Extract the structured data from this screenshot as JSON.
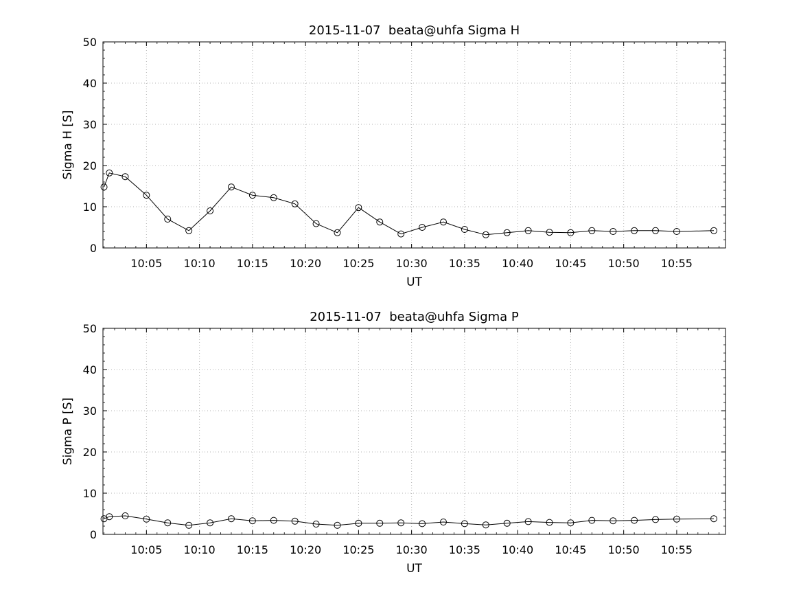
{
  "figure": {
    "background_color": "#ffffff",
    "axis_color": "#000000",
    "grid_color": "#b3b3b3",
    "marker_style": "hollow-circle",
    "line_color": "#000000"
  },
  "chart_data": [
    {
      "type": "line",
      "title": "2015-11-07  beata@uhfa Sigma H",
      "xlabel": "UT",
      "ylabel": "Sigma H [S]",
      "ylim": [
        0,
        50
      ],
      "y_ticks": [
        0,
        10,
        20,
        30,
        40,
        50
      ],
      "xlim_minutes": [
        0.9,
        59.6
      ],
      "x_ticks": [
        {
          "m": 5,
          "label": "10:05"
        },
        {
          "m": 10,
          "label": "10:10"
        },
        {
          "m": 15,
          "label": "10:15"
        },
        {
          "m": 20,
          "label": "10:20"
        },
        {
          "m": 25,
          "label": "10:25"
        },
        {
          "m": 30,
          "label": "10:30"
        },
        {
          "m": 35,
          "label": "10:35"
        },
        {
          "m": 40,
          "label": "10:40"
        },
        {
          "m": 45,
          "label": "10:45"
        },
        {
          "m": 50,
          "label": "10:50"
        },
        {
          "m": 55,
          "label": "10:55"
        }
      ],
      "grid": true,
      "legend": "none",
      "times": [
        "10:01",
        "10:01:30",
        "10:03",
        "10:05",
        "10:07",
        "10:09",
        "10:11",
        "10:13",
        "10:15",
        "10:17",
        "10:19",
        "10:21",
        "10:23",
        "10:25",
        "10:27",
        "10:29",
        "10:31",
        "10:33",
        "10:35",
        "10:37",
        "10:39",
        "10:41",
        "10:43",
        "10:45",
        "10:47",
        "10:49",
        "10:51",
        "10:53",
        "10:55",
        "10:58:30"
      ],
      "x_minutes": [
        1,
        1.5,
        3,
        5,
        7,
        9,
        11,
        13,
        15,
        17,
        19,
        21,
        23,
        25,
        27,
        29,
        31,
        33,
        35,
        37,
        39,
        41,
        43,
        45,
        47,
        49,
        51,
        53,
        55,
        58.5
      ],
      "values": [
        14.8,
        18.2,
        17.3,
        12.8,
        7.0,
        4.2,
        9.0,
        14.8,
        12.8,
        12.2,
        10.7,
        5.9,
        3.7,
        9.8,
        6.3,
        3.4,
        5.0,
        6.3,
        4.5,
        3.2,
        3.7,
        4.2,
        3.8,
        3.7,
        4.2,
        4.0,
        4.2,
        4.2,
        4.0,
        4.2
      ]
    },
    {
      "type": "line",
      "title": "2015-11-07  beata@uhfa Sigma P",
      "xlabel": "UT",
      "ylabel": "Sigma P [S]",
      "ylim": [
        0,
        50
      ],
      "y_ticks": [
        0,
        10,
        20,
        30,
        40,
        50
      ],
      "xlim_minutes": [
        0.9,
        59.6
      ],
      "x_ticks": [
        {
          "m": 5,
          "label": "10:05"
        },
        {
          "m": 10,
          "label": "10:10"
        },
        {
          "m": 15,
          "label": "10:15"
        },
        {
          "m": 20,
          "label": "10:20"
        },
        {
          "m": 25,
          "label": "10:25"
        },
        {
          "m": 30,
          "label": "10:30"
        },
        {
          "m": 35,
          "label": "10:35"
        },
        {
          "m": 40,
          "label": "10:40"
        },
        {
          "m": 45,
          "label": "10:45"
        },
        {
          "m": 50,
          "label": "10:50"
        },
        {
          "m": 55,
          "label": "10:55"
        }
      ],
      "grid": true,
      "legend": "none",
      "times": [
        "10:01",
        "10:01:30",
        "10:03",
        "10:05",
        "10:07",
        "10:09",
        "10:11",
        "10:13",
        "10:15",
        "10:17",
        "10:19",
        "10:21",
        "10:23",
        "10:25",
        "10:27",
        "10:29",
        "10:31",
        "10:33",
        "10:35",
        "10:37",
        "10:39",
        "10:41",
        "10:43",
        "10:45",
        "10:47",
        "10:49",
        "10:51",
        "10:53",
        "10:55",
        "10:58:30"
      ],
      "x_minutes": [
        1,
        1.5,
        3,
        5,
        7,
        9,
        11,
        13,
        15,
        17,
        19,
        21,
        23,
        25,
        27,
        29,
        31,
        33,
        35,
        37,
        39,
        41,
        43,
        45,
        47,
        49,
        51,
        53,
        55,
        58.5
      ],
      "values": [
        3.8,
        4.3,
        4.5,
        3.7,
        2.8,
        2.2,
        2.8,
        3.8,
        3.3,
        3.4,
        3.2,
        2.5,
        2.2,
        2.7,
        2.7,
        2.8,
        2.6,
        3.0,
        2.6,
        2.3,
        2.7,
        3.1,
        2.9,
        2.8,
        3.4,
        3.3,
        3.4,
        3.6,
        3.7,
        3.8
      ]
    }
  ]
}
